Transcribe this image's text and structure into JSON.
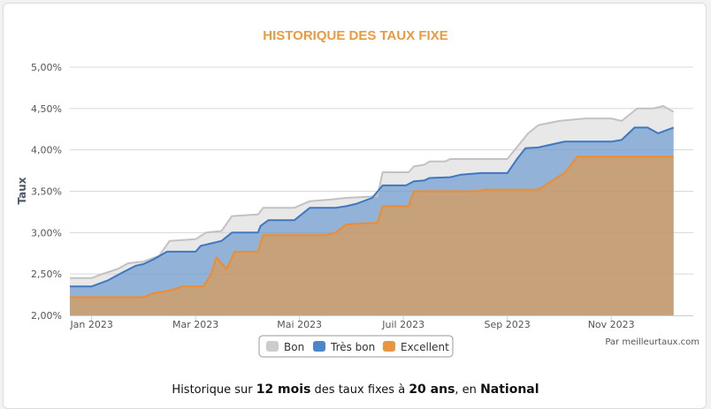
{
  "chart_data": {
    "type": "area",
    "title": "HISTORIQUE DES TAUX FIXE",
    "ylabel": "Taux",
    "xlabel": "",
    "ylim": [
      2.0,
      5.0
    ],
    "y_ticks": [
      "2,00%",
      "2,50%",
      "3,00%",
      "3,50%",
      "4,00%",
      "4,50%",
      "5,00%"
    ],
    "x_ticks": [
      {
        "label": "Jan 2023",
        "month": 1
      },
      {
        "label": "Mar 2023",
        "month": 3
      },
      {
        "label": "Mai 2023",
        "month": 5
      },
      {
        "label": "Juil 2023",
        "month": 7
      },
      {
        "label": "Sep 2023",
        "month": 9
      },
      {
        "label": "Nov 2023",
        "month": 11
      }
    ],
    "x_domain_months": [
      0.58,
      12.58
    ],
    "grid": true,
    "legend_position": "bottom-center",
    "credit": "Par meilleurtaux.com",
    "series": [
      {
        "name": "Bon",
        "color": "#cccccc",
        "line_color": "#c2c2c2",
        "points": [
          [
            0.58,
            2.45
          ],
          [
            1.0,
            2.45
          ],
          [
            1.2,
            2.5
          ],
          [
            1.5,
            2.56
          ],
          [
            1.7,
            2.63
          ],
          [
            2.0,
            2.65
          ],
          [
            2.3,
            2.72
          ],
          [
            2.5,
            2.9
          ],
          [
            3.0,
            2.92
          ],
          [
            3.2,
            3.0
          ],
          [
            3.5,
            3.02
          ],
          [
            3.7,
            3.2
          ],
          [
            4.2,
            3.22
          ],
          [
            4.3,
            3.3
          ],
          [
            4.9,
            3.3
          ],
          [
            5.2,
            3.38
          ],
          [
            5.6,
            3.4
          ],
          [
            5.9,
            3.42
          ],
          [
            6.5,
            3.44
          ],
          [
            6.6,
            3.73
          ],
          [
            7.1,
            3.73
          ],
          [
            7.2,
            3.8
          ],
          [
            7.4,
            3.82
          ],
          [
            7.5,
            3.86
          ],
          [
            7.8,
            3.86
          ],
          [
            7.9,
            3.89
          ],
          [
            9.0,
            3.89
          ],
          [
            9.4,
            4.2
          ],
          [
            9.6,
            4.3
          ],
          [
            10.0,
            4.35
          ],
          [
            10.5,
            4.38
          ],
          [
            11.0,
            4.38
          ],
          [
            11.2,
            4.35
          ],
          [
            11.5,
            4.5
          ],
          [
            11.8,
            4.5
          ],
          [
            12.0,
            4.53
          ],
          [
            12.2,
            4.46
          ]
        ]
      },
      {
        "name": "Très bon",
        "color": "#4a86c8",
        "line_color": "#3f78c1",
        "points": [
          [
            0.58,
            2.35
          ],
          [
            1.0,
            2.35
          ],
          [
            1.3,
            2.42
          ],
          [
            1.6,
            2.52
          ],
          [
            1.85,
            2.6
          ],
          [
            2.0,
            2.62
          ],
          [
            2.2,
            2.68
          ],
          [
            2.45,
            2.77
          ],
          [
            3.0,
            2.77
          ],
          [
            3.1,
            2.84
          ],
          [
            3.3,
            2.87
          ],
          [
            3.5,
            2.9
          ],
          [
            3.7,
            3.0
          ],
          [
            4.2,
            3.0
          ],
          [
            4.25,
            3.08
          ],
          [
            4.4,
            3.15
          ],
          [
            4.9,
            3.15
          ],
          [
            5.2,
            3.3
          ],
          [
            5.7,
            3.3
          ],
          [
            5.9,
            3.32
          ],
          [
            6.1,
            3.35
          ],
          [
            6.4,
            3.42
          ],
          [
            6.6,
            3.57
          ],
          [
            7.05,
            3.57
          ],
          [
            7.2,
            3.62
          ],
          [
            7.4,
            3.63
          ],
          [
            7.5,
            3.66
          ],
          [
            7.9,
            3.67
          ],
          [
            8.1,
            3.7
          ],
          [
            8.5,
            3.72
          ],
          [
            9.0,
            3.72
          ],
          [
            9.2,
            3.9
          ],
          [
            9.35,
            4.02
          ],
          [
            9.6,
            4.03
          ],
          [
            10.1,
            4.1
          ],
          [
            11.0,
            4.1
          ],
          [
            11.2,
            4.12
          ],
          [
            11.45,
            4.27
          ],
          [
            11.7,
            4.27
          ],
          [
            11.9,
            4.2
          ],
          [
            12.2,
            4.27
          ]
        ]
      },
      {
        "name": "Excellent",
        "color": "#e8963f",
        "line_color": "#ef8c2d",
        "points": [
          [
            0.58,
            2.22
          ],
          [
            2.0,
            2.22
          ],
          [
            2.2,
            2.27
          ],
          [
            2.5,
            2.3
          ],
          [
            2.75,
            2.35
          ],
          [
            3.15,
            2.35
          ],
          [
            3.3,
            2.5
          ],
          [
            3.4,
            2.7
          ],
          [
            3.6,
            2.56
          ],
          [
            3.75,
            2.77
          ],
          [
            4.2,
            2.77
          ],
          [
            4.3,
            2.97
          ],
          [
            5.5,
            2.97
          ],
          [
            5.7,
            3.0
          ],
          [
            5.9,
            3.1
          ],
          [
            6.5,
            3.12
          ],
          [
            6.6,
            3.32
          ],
          [
            7.1,
            3.32
          ],
          [
            7.2,
            3.5
          ],
          [
            8.4,
            3.5
          ],
          [
            8.6,
            3.52
          ],
          [
            9.6,
            3.52
          ],
          [
            9.8,
            3.6
          ],
          [
            10.1,
            3.72
          ],
          [
            10.35,
            3.92
          ],
          [
            12.2,
            3.92
          ]
        ]
      }
    ]
  },
  "caption": {
    "p1": "Historique sur ",
    "b1": "12 mois",
    "p2": " des taux fixes à ",
    "b2": "20 ans",
    "p3": ", en ",
    "b3": "National"
  }
}
